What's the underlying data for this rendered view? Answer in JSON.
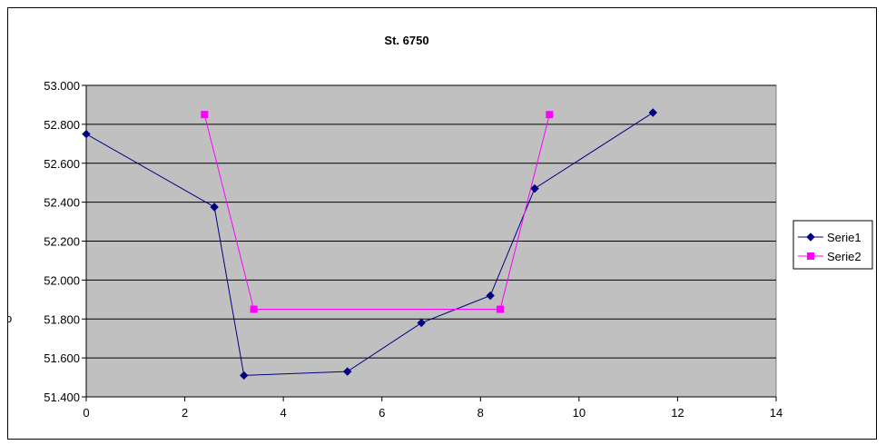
{
  "chart_data": {
    "type": "line",
    "title": "St. 6750",
    "xlabel": "",
    "ylabel": "",
    "xlim": [
      0,
      14
    ],
    "ylim": [
      51.4,
      53.0
    ],
    "x_ticks": [
      0,
      2,
      4,
      6,
      8,
      10,
      12,
      14
    ],
    "y_ticks": [
      51.4,
      51.6,
      51.8,
      52.0,
      52.2,
      52.4,
      52.6,
      52.8,
      53.0
    ],
    "y_tick_labels": [
      "51.400",
      "51.600",
      "51.800",
      "52.000",
      "52.200",
      "52.400",
      "52.600",
      "52.800",
      "53.000"
    ],
    "grid": "horizontal",
    "plot_background": "#c0c0c0",
    "legend_position": "right",
    "series": [
      {
        "name": "Serie1",
        "color": "#000080",
        "marker": "diamond",
        "points": [
          {
            "x": 0,
            "y": 52.75
          },
          {
            "x": 2.6,
            "y": 52.375
          },
          {
            "x": 3.2,
            "y": 51.51
          },
          {
            "x": 5.3,
            "y": 51.53
          },
          {
            "x": 6.8,
            "y": 51.78
          },
          {
            "x": 8.2,
            "y": 51.92
          },
          {
            "x": 9.1,
            "y": 52.47
          },
          {
            "x": 11.5,
            "y": 52.86
          }
        ]
      },
      {
        "name": "Serie2",
        "color": "#ff00ff",
        "marker": "square",
        "points": [
          {
            "x": 2.4,
            "y": 52.85
          },
          {
            "x": 3.4,
            "y": 51.85
          },
          {
            "x": 8.4,
            "y": 51.85
          },
          {
            "x": 9.4,
            "y": 52.85
          }
        ]
      }
    ]
  }
}
